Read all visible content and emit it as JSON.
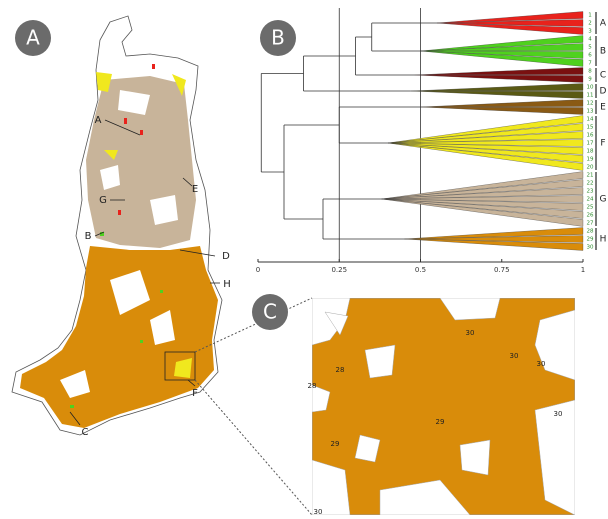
{
  "panels": {
    "labels": [
      "A",
      "B",
      "C"
    ]
  },
  "map": {
    "region_labels": [
      "A",
      "B",
      "C",
      "D",
      "E",
      "F",
      "G",
      "H"
    ]
  },
  "dendrogram": {
    "xlim": [
      0,
      1
    ],
    "xticks": [
      0,
      0.25,
      0.5,
      0.75,
      1
    ],
    "leaves": [
      1,
      2,
      3,
      4,
      5,
      6,
      7,
      8,
      9,
      10,
      11,
      12,
      13,
      14,
      15,
      16,
      17,
      18,
      19,
      20,
      21,
      22,
      23,
      24,
      25,
      26,
      27,
      28,
      29,
      30
    ],
    "groups": [
      {
        "label": "A",
        "color": "#e8221c"
      },
      {
        "label": "B",
        "color": "#4fd11e"
      },
      {
        "label": "C",
        "color": "#7a1010"
      },
      {
        "label": "D",
        "color": "#5a5a14"
      },
      {
        "label": "E",
        "color": "#8a5a14"
      },
      {
        "label": "F",
        "color": "#f0e81e"
      },
      {
        "label": "G",
        "color": "#c8b49a"
      },
      {
        "label": "H",
        "color": "#d98c0a"
      }
    ]
  },
  "zoom": {
    "labels": [
      30,
      28,
      28,
      30,
      30,
      29,
      29,
      30,
      30
    ]
  }
}
